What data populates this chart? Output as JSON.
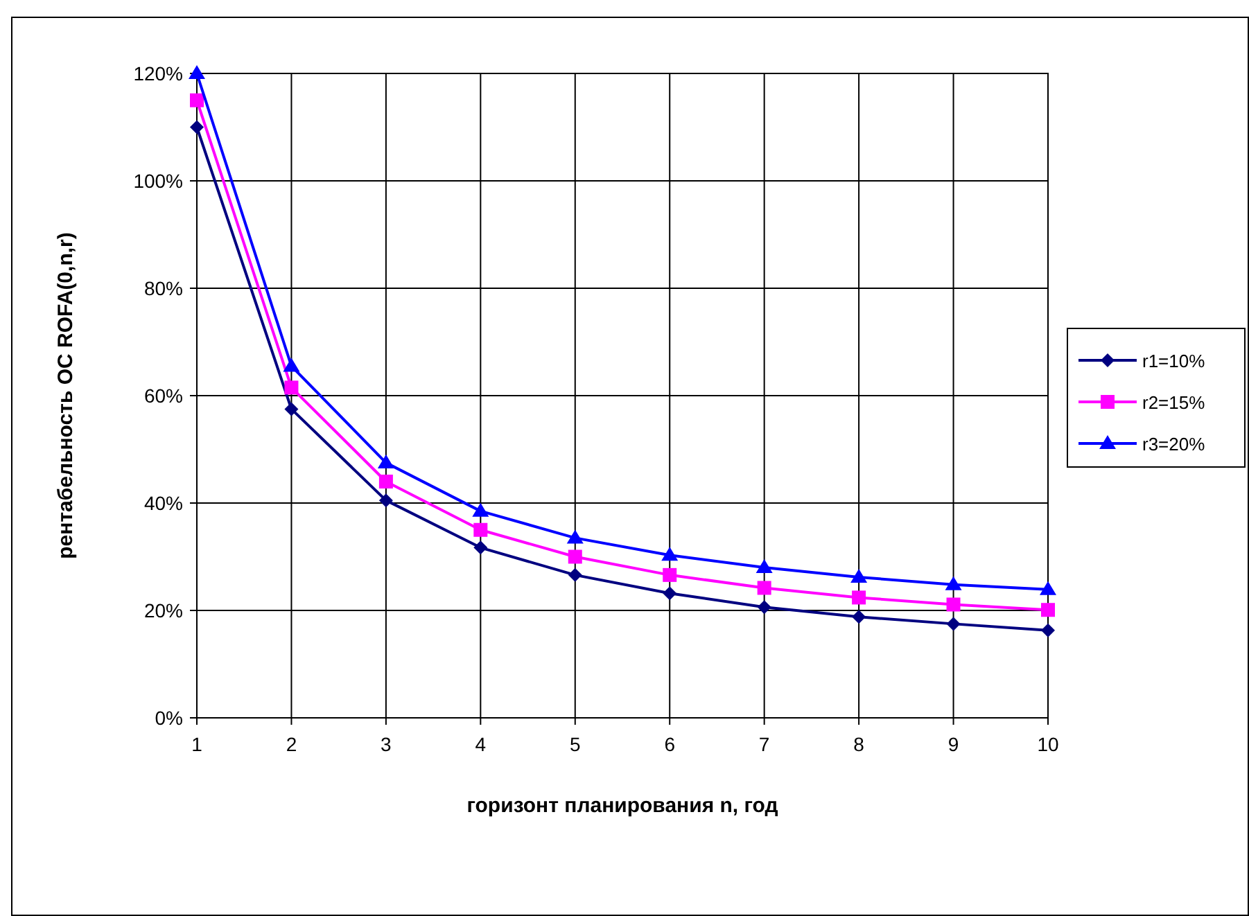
{
  "chart_data": {
    "type": "line",
    "xlabel": "горизонт планирования n, год",
    "ylabel": "рентабельность ОС  ROFA(0,n,r)",
    "x": [
      1,
      2,
      3,
      4,
      5,
      6,
      7,
      8,
      9,
      10
    ],
    "xlim": [
      1,
      10
    ],
    "xticks": [
      1,
      2,
      3,
      4,
      5,
      6,
      7,
      8,
      9,
      10
    ],
    "ylim": [
      0,
      120
    ],
    "yticks": [
      {
        "value": 0,
        "label": "0%"
      },
      {
        "value": 20,
        "label": "20%"
      },
      {
        "value": 40,
        "label": "40%"
      },
      {
        "value": 60,
        "label": "60%"
      },
      {
        "value": 80,
        "label": "80%"
      },
      {
        "value": 100,
        "label": "100%"
      },
      {
        "value": 120,
        "label": "120%"
      }
    ],
    "grid": true,
    "legend": "right",
    "line_style": "solid",
    "series": [
      {
        "name": "r1=10%",
        "color": "#000080",
        "marker": "diamond",
        "values": [
          110,
          57.5,
          40.5,
          31.7,
          26.6,
          23.2,
          20.6,
          18.8,
          17.5,
          16.3
        ]
      },
      {
        "name": "r2=15%",
        "color": "#ff00ff",
        "marker": "square",
        "values": [
          115,
          61.5,
          44,
          35,
          30,
          26.6,
          24.2,
          22.4,
          21.1,
          20.1
        ]
      },
      {
        "name": "r3=20%",
        "color": "#0000ff",
        "marker": "triangle",
        "values": [
          120,
          65.5,
          47.5,
          38.5,
          33.5,
          30.3,
          28,
          26.2,
          24.8,
          23.9
        ]
      }
    ]
  }
}
